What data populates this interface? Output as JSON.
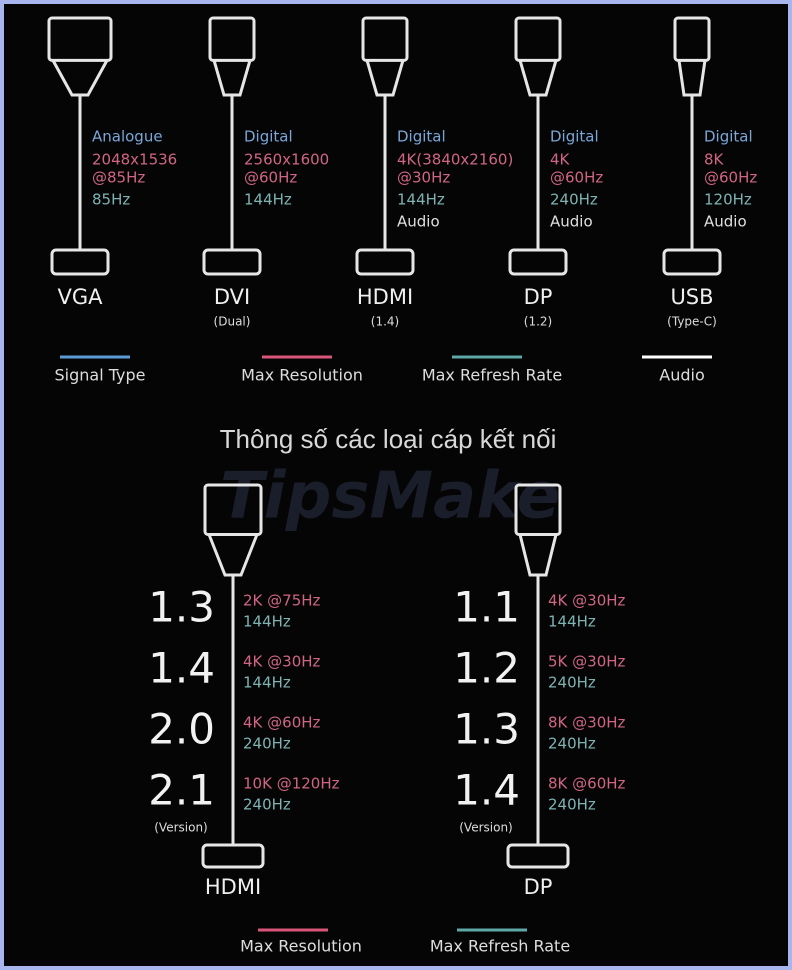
{
  "top": {
    "connectors": [
      {
        "name": "VGA",
        "signal": "Analogue",
        "resolution": [
          "2048x1536",
          "@85Hz"
        ],
        "refresh": "85Hz"
      },
      {
        "name": "DVI",
        "sub": "(Dual)",
        "signal": "Digital",
        "resolution": [
          "2560x1600",
          "@60Hz"
        ],
        "refresh": "144Hz"
      },
      {
        "name": "HDMI",
        "sub": "(1.4)",
        "signal": "Digital",
        "resolution": [
          "4K(3840x2160)",
          "@30Hz"
        ],
        "refresh": "144Hz",
        "audio": "Audio"
      },
      {
        "name": "DP",
        "sub": "(1.2)",
        "signal": "Digital",
        "resolution": [
          "4K",
          "@60Hz"
        ],
        "refresh": "240Hz",
        "audio": "Audio"
      },
      {
        "name": "USB",
        "sub": "(Type-C)",
        "signal": "Digital",
        "resolution": [
          "8K",
          "@60Hz"
        ],
        "refresh": "120Hz",
        "audio": "Audio"
      }
    ],
    "legend": [
      {
        "label": "Signal Type",
        "color": "#5b9bd5"
      },
      {
        "label": "Max Resolution",
        "color": "#d9557a"
      },
      {
        "label": "Max Refresh Rate",
        "color": "#5fa8a8"
      },
      {
        "label": "Audio",
        "color": "#ffffff"
      }
    ]
  },
  "caption": "Thông số các loại cáp kết nối",
  "watermark": "TipsMake",
  "bottom": {
    "cables": [
      {
        "name": "HDMI",
        "version_note": "(Version)",
        "versions": [
          {
            "version": "1.3",
            "resolution": "2K @75Hz",
            "refresh": "144Hz"
          },
          {
            "version": "1.4",
            "resolution": "4K @30Hz",
            "refresh": "144Hz"
          },
          {
            "version": "2.0",
            "resolution": "4K @60Hz",
            "refresh": "240Hz"
          },
          {
            "version": "2.1",
            "resolution": "10K @120Hz",
            "refresh": "240Hz"
          }
        ]
      },
      {
        "name": "DP",
        "version_note": "(Version)",
        "versions": [
          {
            "version": "1.1",
            "resolution": "4K @30Hz",
            "refresh": "144Hz"
          },
          {
            "version": "1.2",
            "resolution": "5K @30Hz",
            "refresh": "240Hz"
          },
          {
            "version": "1.3",
            "resolution": "8K @30Hz",
            "refresh": "240Hz"
          },
          {
            "version": "1.4",
            "resolution": "8K @60Hz",
            "refresh": "240Hz"
          }
        ]
      }
    ],
    "legend": [
      {
        "label": "Max Resolution",
        "color": "#d9557a"
      },
      {
        "label": "Max Refresh Rate",
        "color": "#5fa8a8"
      }
    ]
  }
}
